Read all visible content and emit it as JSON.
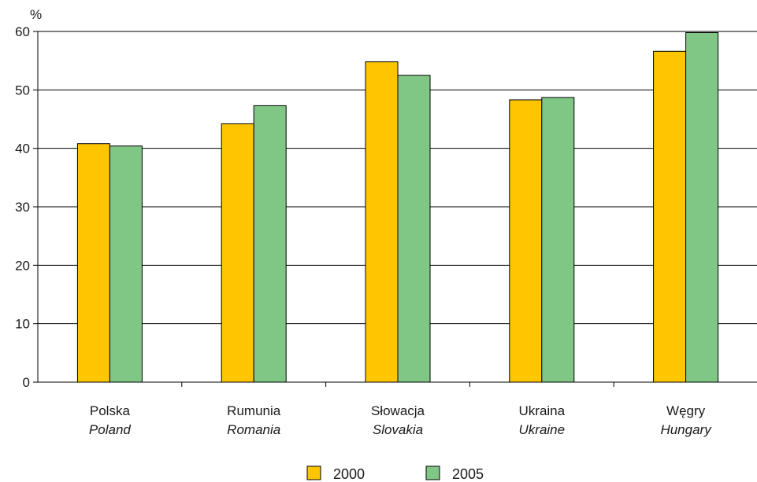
{
  "chart_data": {
    "type": "bar",
    "ylabel": "%",
    "ylim": [
      0,
      60
    ],
    "yticks": [
      0,
      10,
      20,
      30,
      40,
      50,
      60
    ],
    "grid": true,
    "legend_position": "bottom",
    "categories": [
      {
        "primary": "Polska",
        "secondary": "Poland"
      },
      {
        "primary": "Rumunia",
        "secondary": "Romania"
      },
      {
        "primary": "Słowacja",
        "secondary": "Slovakia"
      },
      {
        "primary": "Ukraina",
        "secondary": "Ukraine"
      },
      {
        "primary": "Węgry",
        "secondary": "Hungary"
      }
    ],
    "series": [
      {
        "name": "2000",
        "color": "#FFC600",
        "values": [
          40.8,
          44.2,
          54.8,
          48.3,
          56.6
        ]
      },
      {
        "name": "2005",
        "color": "#80C785",
        "values": [
          40.4,
          47.3,
          52.5,
          48.7,
          59.8
        ]
      }
    ]
  }
}
